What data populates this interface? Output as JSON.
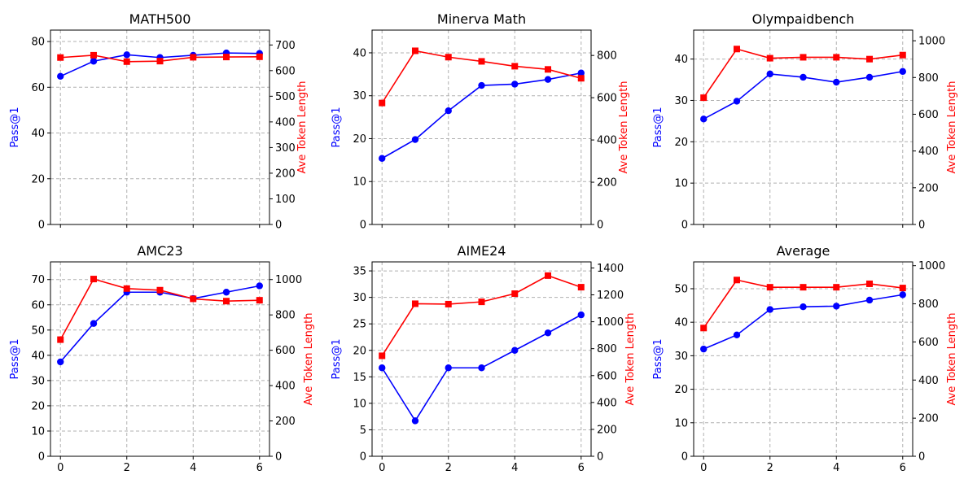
{
  "chart_data": [
    {
      "type": "line",
      "title": "MATH500",
      "x": [
        0,
        1,
        2,
        3,
        4,
        5,
        6
      ],
      "xticks": [
        0,
        2,
        4,
        6
      ],
      "show_x_tick_labels": false,
      "ylabel": "Pass@1",
      "ylim": [
        0,
        85
      ],
      "yticks": [
        0,
        20,
        40,
        60,
        80
      ],
      "y2label": "Ave Token Length",
      "y2lim": [
        0,
        758
      ],
      "y2ticks": [
        0,
        100,
        200,
        300,
        400,
        500,
        600,
        700
      ],
      "series": [
        {
          "axis": "left",
          "color": "#0000ff",
          "marker": "circle",
          "values": [
            64.8,
            71.4,
            74.2,
            73.0,
            74.0,
            75.0,
            74.8
          ]
        },
        {
          "axis": "right",
          "color": "#ff0000",
          "marker": "square",
          "values": [
            651,
            660,
            635,
            637,
            652,
            653,
            654
          ]
        }
      ],
      "grid": true
    },
    {
      "type": "line",
      "title": "Minerva Math",
      "x": [
        0,
        1,
        2,
        3,
        4,
        5,
        6
      ],
      "xticks": [
        0,
        2,
        4,
        6
      ],
      "show_x_tick_labels": false,
      "ylabel": "Pass@1",
      "ylim": [
        0,
        45.3
      ],
      "yticks": [
        0,
        10,
        20,
        30,
        40
      ],
      "y2label": "Ave Token Length",
      "y2lim": [
        0,
        920
      ],
      "y2ticks": [
        0,
        200,
        400,
        600,
        800
      ],
      "series": [
        {
          "axis": "left",
          "color": "#0000ff",
          "marker": "circle",
          "values": [
            15.4,
            19.8,
            26.5,
            32.4,
            32.7,
            33.8,
            35.3
          ]
        },
        {
          "axis": "right",
          "color": "#ff0000",
          "marker": "square",
          "values": [
            575,
            822,
            792,
            772,
            749,
            734,
            692
          ]
        }
      ],
      "grid": true
    },
    {
      "type": "line",
      "title": "Olympaidbench",
      "x": [
        0,
        1,
        2,
        3,
        4,
        5,
        6
      ],
      "xticks": [
        0,
        2,
        4,
        6
      ],
      "show_x_tick_labels": false,
      "ylabel": "Pass@1",
      "ylim": [
        0,
        47
      ],
      "yticks": [
        0,
        10,
        20,
        30,
        40
      ],
      "y2label": "Ave Token Length",
      "y2lim": [
        0,
        1058
      ],
      "y2ticks": [
        0,
        200,
        400,
        600,
        800,
        1000
      ],
      "series": [
        {
          "axis": "left",
          "color": "#0000ff",
          "marker": "circle",
          "values": [
            25.5,
            29.8,
            36.4,
            35.6,
            34.4,
            35.6,
            37.0
          ]
        },
        {
          "axis": "right",
          "color": "#ff0000",
          "marker": "square",
          "values": [
            690,
            955,
            905,
            910,
            910,
            900,
            922
          ]
        }
      ],
      "grid": true
    },
    {
      "type": "line",
      "title": "AMC23",
      "x": [
        0,
        1,
        2,
        3,
        4,
        5,
        6
      ],
      "xticks": [
        0,
        2,
        4,
        6
      ],
      "xticklabels": [
        "0",
        "2",
        "4",
        "6"
      ],
      "show_x_tick_labels": true,
      "ylabel": "Pass@1",
      "ylim": [
        0,
        77
      ],
      "yticks": [
        0,
        10,
        20,
        30,
        40,
        50,
        60,
        70
      ],
      "y2label": "Ave Token Length",
      "y2lim": [
        0,
        1100
      ],
      "y2ticks": [
        0,
        200,
        400,
        600,
        800,
        1000
      ],
      "series": [
        {
          "axis": "left",
          "color": "#0000ff",
          "marker": "circle",
          "values": [
            37.4,
            52.6,
            65.0,
            65.0,
            62.5,
            65.0,
            67.5
          ]
        },
        {
          "axis": "right",
          "color": "#ff0000",
          "marker": "square",
          "values": [
            660,
            1003,
            949,
            940,
            891,
            878,
            883
          ]
        }
      ],
      "grid": true
    },
    {
      "type": "line",
      "title": "AIME24",
      "x": [
        0,
        1,
        2,
        3,
        4,
        5,
        6
      ],
      "xticks": [
        0,
        2,
        4,
        6
      ],
      "xticklabels": [
        "0",
        "2",
        "4",
        "6"
      ],
      "show_x_tick_labels": true,
      "ylabel": "Pass@1",
      "ylim": [
        0,
        36.7
      ],
      "yticks": [
        0,
        5,
        10,
        15,
        20,
        25,
        30,
        35
      ],
      "y2label": "Ave Token Length",
      "y2lim": [
        0,
        1445
      ],
      "y2ticks": [
        0,
        200,
        400,
        600,
        800,
        1000,
        1200,
        1400
      ],
      "series": [
        {
          "axis": "left",
          "color": "#0000ff",
          "marker": "circle",
          "values": [
            16.7,
            6.7,
            16.7,
            16.7,
            20.0,
            23.3,
            26.7
          ]
        },
        {
          "axis": "right",
          "color": "#ff0000",
          "marker": "square",
          "values": [
            747,
            1134,
            1131,
            1148,
            1209,
            1343,
            1257
          ]
        }
      ],
      "grid": true
    },
    {
      "type": "line",
      "title": "Average",
      "x": [
        0,
        1,
        2,
        3,
        4,
        5,
        6
      ],
      "xticks": [
        0,
        2,
        4,
        6
      ],
      "xticklabels": [
        "0",
        "2",
        "4",
        "6"
      ],
      "show_x_tick_labels": true,
      "ylabel": "Pass@1",
      "ylim": [
        0,
        58
      ],
      "yticks": [
        0,
        10,
        20,
        30,
        40,
        50
      ],
      "y2label": "Ave Token Length",
      "y2lim": [
        0,
        1020
      ],
      "y2ticks": [
        0,
        200,
        400,
        600,
        800,
        1000
      ],
      "series": [
        {
          "axis": "left",
          "color": "#0000ff",
          "marker": "circle",
          "values": [
            32.0,
            36.2,
            43.8,
            44.6,
            44.8,
            46.6,
            48.2
          ]
        },
        {
          "axis": "right",
          "color": "#ff0000",
          "marker": "square",
          "values": [
            673,
            925,
            887,
            887,
            887,
            905,
            883
          ]
        }
      ],
      "grid": true
    }
  ]
}
